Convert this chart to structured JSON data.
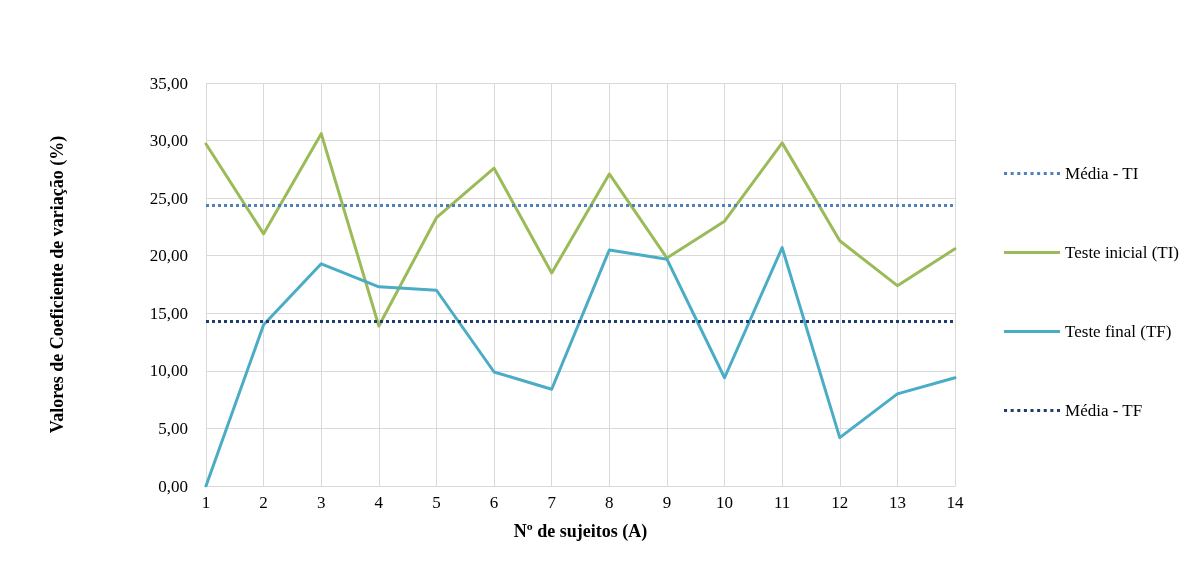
{
  "chart_data": {
    "type": "line",
    "xlabel": "Nº de sujeitos (A)",
    "ylabel": "Valores de Coeficiente de variação (%)",
    "x": [
      1,
      2,
      3,
      4,
      5,
      6,
      7,
      8,
      9,
      10,
      11,
      12,
      13,
      14
    ],
    "xlim": [
      1,
      14
    ],
    "xticks": [
      1,
      2,
      3,
      4,
      5,
      6,
      7,
      8,
      9,
      10,
      11,
      12,
      13,
      14
    ],
    "series": [
      {
        "name": "Teste inicial (TI)",
        "color": "#9bbb59",
        "values": [
          29.7,
          21.9,
          30.6,
          13.9,
          23.3,
          27.6,
          18.5,
          27.1,
          19.8,
          23.0,
          29.8,
          21.3,
          17.4,
          20.6
        ]
      },
      {
        "name": "Teste final (TF)",
        "color": "#4bacc6",
        "values": [
          0.0,
          14.0,
          19.3,
          17.3,
          17.0,
          9.9,
          8.4,
          20.5,
          19.7,
          9.4,
          20.7,
          4.2,
          8.0,
          9.4
        ]
      }
    ],
    "ylim": [
      0,
      35
    ],
    "yticks": [
      {
        "value": 0,
        "label": "0,00"
      },
      {
        "value": 5,
        "label": "5,00"
      },
      {
        "value": 10,
        "label": "10,00"
      },
      {
        "value": 15,
        "label": "15,00"
      },
      {
        "value": 20,
        "label": "20,00"
      },
      {
        "value": 25,
        "label": "25,00"
      },
      {
        "value": 30,
        "label": "30,00"
      },
      {
        "value": 35,
        "label": "35,00"
      }
    ],
    "ref_lines": [
      {
        "axis": "y",
        "value": 24.4,
        "label": "Média - TI",
        "color": "#4f81bd",
        "line_style": "dotted"
      },
      {
        "axis": "y",
        "value": 14.3,
        "label": "Média - TF",
        "color": "#1f3d6e",
        "line_style": "dotted"
      }
    ],
    "grid": true,
    "legend": "right",
    "marker": "none",
    "line_style": "solid"
  }
}
